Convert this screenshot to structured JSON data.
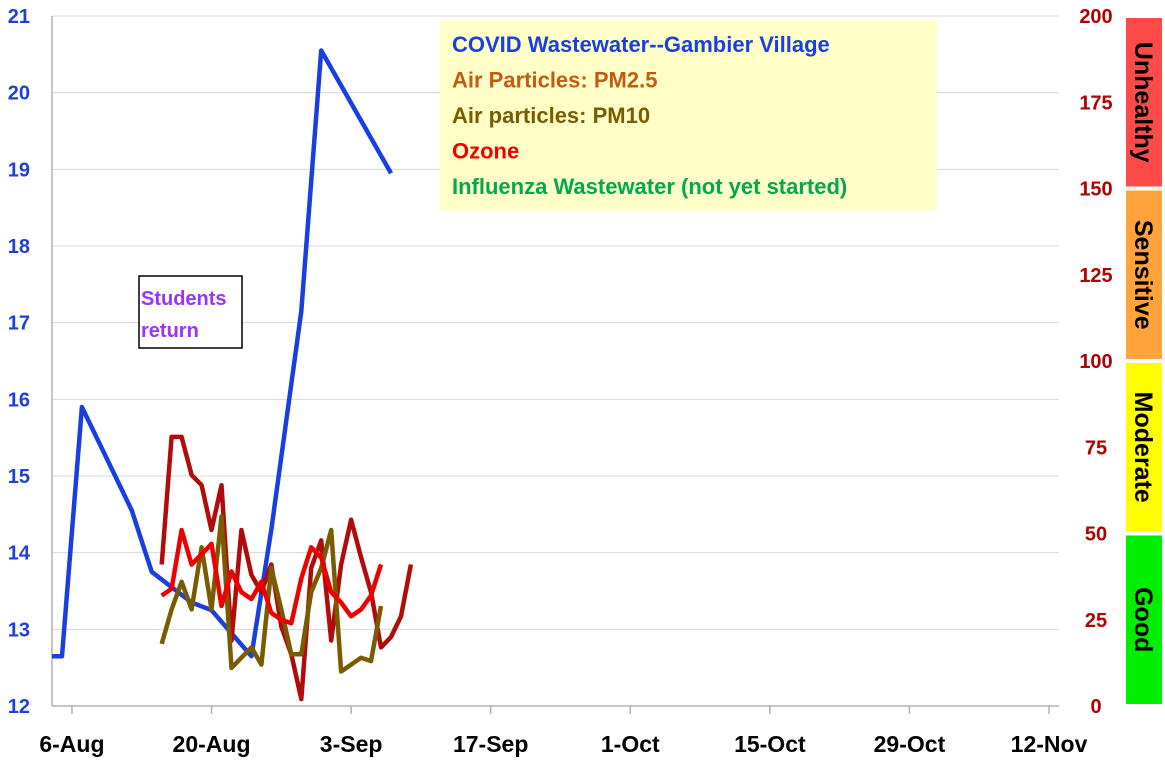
{
  "chart_data": {
    "type": "line",
    "x_tick_labels": [
      "6-Aug",
      "20-Aug",
      "3-Sep",
      "17-Sep",
      "1-Oct",
      "15-Oct",
      "29-Oct",
      "12-Nov"
    ],
    "x_range": [
      "2023-08-04",
      "2023-11-13"
    ],
    "y_left": {
      "range": [
        12,
        21
      ],
      "ticks": [
        "12",
        "13",
        "14",
        "15",
        "16",
        "17",
        "18",
        "19",
        "20",
        "21"
      ]
    },
    "y_right": {
      "range": [
        0,
        200
      ],
      "ticks": [
        "0",
        "25",
        "50",
        "75",
        "100",
        "125",
        "150",
        "175",
        "200"
      ]
    },
    "grid": "horizontal",
    "legend_position": "top-center",
    "series": [
      {
        "name": "COVID Wastewater--Gambier Village",
        "color": "#1a3fe0",
        "axis": "left",
        "points": [
          [
            "2023-08-04",
            12.65
          ],
          [
            "2023-08-05",
            12.65
          ],
          [
            "2023-08-07",
            15.9
          ],
          [
            "2023-08-12",
            14.55
          ],
          [
            "2023-08-14",
            13.75
          ],
          [
            "2023-08-18",
            13.35
          ],
          [
            "2023-08-20",
            13.25
          ],
          [
            "2023-08-24",
            12.65
          ],
          [
            "2023-08-26",
            14.3
          ],
          [
            "2023-08-29",
            17.15
          ],
          [
            "2023-08-31",
            20.55
          ],
          [
            "2023-09-07",
            18.95
          ]
        ]
      },
      {
        "name": "Air Particles: PM2.5",
        "color": "#b10c0c",
        "axis": "right",
        "points": [
          [
            "2023-08-15",
            41
          ],
          [
            "2023-08-16",
            78
          ],
          [
            "2023-08-17",
            78
          ],
          [
            "2023-08-18",
            67
          ],
          [
            "2023-08-19",
            64
          ],
          [
            "2023-08-20",
            51
          ],
          [
            "2023-08-21",
            64
          ],
          [
            "2023-08-22",
            19
          ],
          [
            "2023-08-23",
            51
          ],
          [
            "2023-08-24",
            38
          ],
          [
            "2023-08-25",
            33
          ],
          [
            "2023-08-26",
            41
          ],
          [
            "2023-08-27",
            23
          ],
          [
            "2023-08-28",
            15
          ],
          [
            "2023-08-29",
            2
          ],
          [
            "2023-08-30",
            40
          ],
          [
            "2023-08-31",
            48
          ],
          [
            "2023-09-01",
            19
          ],
          [
            "2023-09-02",
            41
          ],
          [
            "2023-09-03",
            54
          ],
          [
            "2023-09-04",
            43
          ],
          [
            "2023-09-05",
            33
          ],
          [
            "2023-09-06",
            17
          ],
          [
            "2023-09-07",
            20
          ],
          [
            "2023-09-08",
            26
          ],
          [
            "2023-09-09",
            41
          ]
        ]
      },
      {
        "name": "Air particles: PM10",
        "color": "#7a5c00",
        "axis": "right",
        "points": [
          [
            "2023-08-15",
            18
          ],
          [
            "2023-08-16",
            28
          ],
          [
            "2023-08-17",
            36
          ],
          [
            "2023-08-18",
            28
          ],
          [
            "2023-08-19",
            46
          ],
          [
            "2023-08-20",
            28
          ],
          [
            "2023-08-21",
            55
          ],
          [
            "2023-08-22",
            11
          ],
          [
            "2023-08-23",
            14
          ],
          [
            "2023-08-24",
            17
          ],
          [
            "2023-08-25",
            12
          ],
          [
            "2023-08-26",
            40
          ],
          [
            "2023-08-27",
            28
          ],
          [
            "2023-08-28",
            15
          ],
          [
            "2023-08-29",
            15
          ],
          [
            "2023-08-30",
            33
          ],
          [
            "2023-08-31",
            40
          ],
          [
            "2023-09-01",
            51
          ],
          [
            "2023-09-02",
            10
          ],
          [
            "2023-09-03",
            12
          ],
          [
            "2023-09-04",
            14
          ],
          [
            "2023-09-05",
            13
          ],
          [
            "2023-09-06",
            29
          ]
        ]
      },
      {
        "name": "Ozone",
        "color": "#ee0000",
        "axis": "right",
        "points": [
          [
            "2023-08-15",
            32
          ],
          [
            "2023-08-16",
            34
          ],
          [
            "2023-08-17",
            51
          ],
          [
            "2023-08-18",
            41
          ],
          [
            "2023-08-19",
            44
          ],
          [
            "2023-08-20",
            47
          ],
          [
            "2023-08-21",
            29
          ],
          [
            "2023-08-22",
            39
          ],
          [
            "2023-08-23",
            33
          ],
          [
            "2023-08-24",
            31
          ],
          [
            "2023-08-25",
            36
          ],
          [
            "2023-08-26",
            27
          ],
          [
            "2023-08-27",
            25
          ],
          [
            "2023-08-28",
            24
          ],
          [
            "2023-08-29",
            37
          ],
          [
            "2023-08-30",
            46
          ],
          [
            "2023-08-31",
            43
          ],
          [
            "2023-09-01",
            33
          ],
          [
            "2023-09-02",
            30
          ],
          [
            "2023-09-03",
            26
          ],
          [
            "2023-09-04",
            28
          ],
          [
            "2023-09-05",
            32
          ],
          [
            "2023-09-06",
            41
          ]
        ]
      },
      {
        "name": "Influenza Wastewater (not yet started)",
        "color": "#00a84f",
        "axis": "right",
        "points": []
      }
    ],
    "aqi_bands": [
      {
        "label": "Good",
        "from": 0,
        "to": 50,
        "color": "#00ee00"
      },
      {
        "label": "Moderate",
        "from": 50,
        "to": 100,
        "color": "#ffff00"
      },
      {
        "label": "Sensitive",
        "from": 100,
        "to": 150,
        "color": "#ffa33a"
      },
      {
        "label": "Unhealthy",
        "from": 150,
        "to": 200,
        "color": "#ff4a4a"
      }
    ],
    "annotation": {
      "lines": [
        "Students",
        "return"
      ],
      "color": "#9933ff"
    }
  }
}
